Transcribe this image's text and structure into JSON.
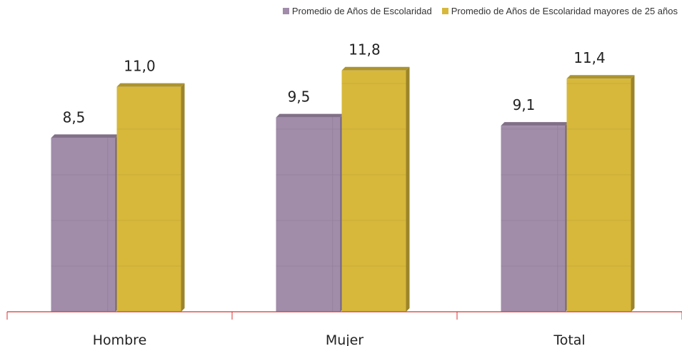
{
  "chart_data": {
    "type": "bar",
    "categories": [
      "Hombre",
      "Mujer",
      "Total"
    ],
    "series": [
      {
        "name": "Promedio de Años de Escolaridad",
        "values": [
          8.5,
          9.5,
          9.1
        ],
        "labels": [
          "8,5",
          "9,5",
          "9,1"
        ],
        "color": "#A18CAA"
      },
      {
        "name": "Promedio de Años de Escolaridad mayores de 25 años",
        "values": [
          11.0,
          11.8,
          11.4
        ],
        "labels": [
          "11,0",
          "11,8",
          "11,4"
        ],
        "color": "#D7B83B"
      }
    ],
    "ylim": [
      0,
      13.5
    ],
    "grid": false,
    "legend_position": "top-right",
    "axis_color": "#D93030",
    "title": "",
    "xlabel": "",
    "ylabel": ""
  }
}
